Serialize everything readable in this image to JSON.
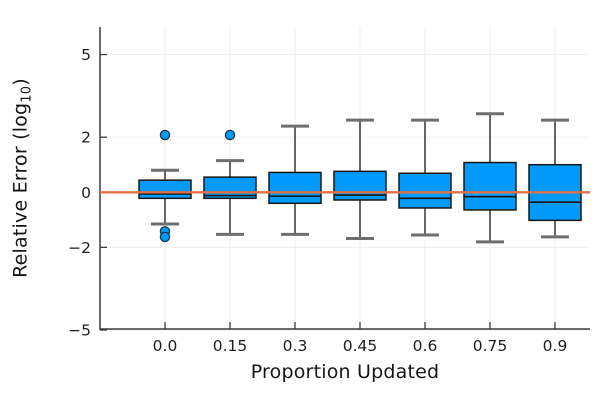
{
  "figure": {
    "xlabel": "Proportion Updated",
    "ylabel": {
      "pre": "Relative Error (log",
      "sub": "10",
      "post": ")"
    }
  },
  "chart_data": {
    "type": "boxplot",
    "title": "",
    "xlabel": "Proportion Updated",
    "ylabel": "Relative Error (log10)",
    "categories": [
      "0.0",
      "0.15",
      "0.3",
      "0.45",
      "0.6",
      "0.75",
      "0.9"
    ],
    "yticks": [
      5,
      2,
      0,
      -2,
      -5
    ],
    "ytick_labels": [
      "5",
      "2",
      "0",
      "−2",
      "−5"
    ],
    "ylim": [
      -5.0,
      6.0
    ],
    "grid": true,
    "boxes": [
      {
        "category": "0.0",
        "whisker_low": -1.15,
        "q1": -0.22,
        "median": -0.06,
        "q3": 0.44,
        "whisker_high": 0.8,
        "outliers": [
          2.08,
          -1.42,
          -1.62
        ]
      },
      {
        "category": "0.15",
        "whisker_low": -1.53,
        "q1": -0.22,
        "median": -0.12,
        "q3": 0.55,
        "whisker_high": 1.15,
        "outliers": [
          2.08
        ]
      },
      {
        "category": "0.3",
        "whisker_low": -1.53,
        "q1": -0.4,
        "median": -0.14,
        "q3": 0.72,
        "whisker_high": 2.4,
        "outliers": []
      },
      {
        "category": "0.45",
        "whisker_low": -1.68,
        "q1": -0.28,
        "median": -0.1,
        "q3": 0.76,
        "whisker_high": 2.62,
        "outliers": []
      },
      {
        "category": "0.6",
        "whisker_low": -1.55,
        "q1": -0.57,
        "median": -0.22,
        "q3": 0.69,
        "whisker_high": 2.62,
        "outliers": []
      },
      {
        "category": "0.75",
        "whisker_low": -1.8,
        "q1": -0.64,
        "median": -0.16,
        "q3": 1.08,
        "whisker_high": 2.85,
        "outliers": []
      },
      {
        "category": "0.9",
        "whisker_low": -1.62,
        "q1": -1.02,
        "median": -0.36,
        "q3": 1.0,
        "whisker_high": 2.62,
        "outliers": []
      }
    ],
    "reference_line": {
      "y": 0,
      "color": "#E36F47"
    },
    "colors": {
      "box_fill": "#009BFA",
      "box_stroke": "#161616",
      "median": "#161616",
      "whisker": "#262626",
      "whisker_cap": "#6E6E6E",
      "outlier_fill": "#009BFA",
      "outlier_stroke": "#10384F",
      "grid": "#EFEFEF",
      "axis": "#3C3C3C",
      "tick_text": "#1E1E1E",
      "background": "#FFFFFF"
    }
  }
}
